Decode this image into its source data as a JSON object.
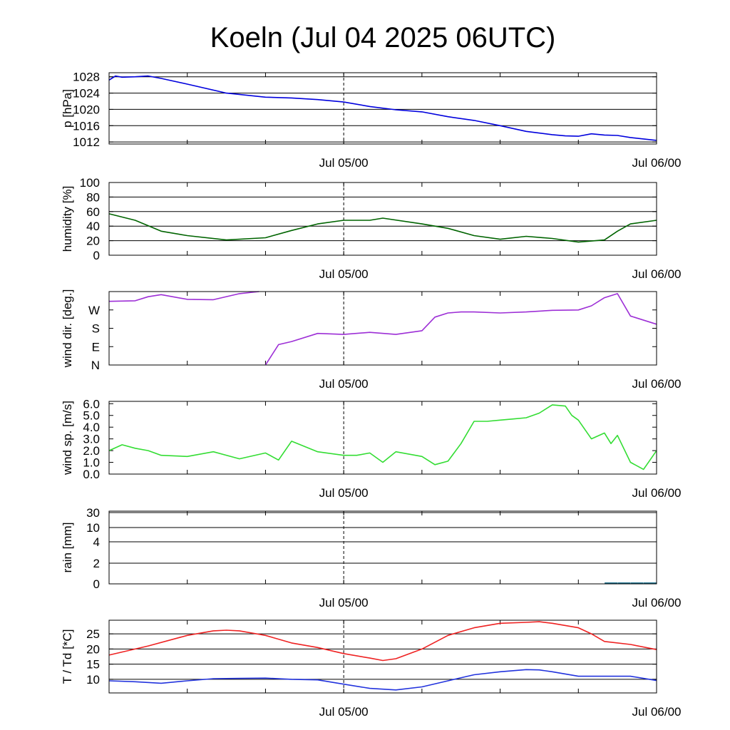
{
  "title": "Koeln (Jul 04 2025 06UTC)",
  "x_axis": {
    "start": "2025-07-04 06:00 UTC",
    "end": "2025-07-06 00:00 UTC",
    "tick_labels": [
      {
        "label": "Jul 05/00",
        "time": "2025-07-05 00:00 UTC"
      },
      {
        "label": "Jul 06/00",
        "time": "2025-07-06 00:00 UTC"
      }
    ]
  },
  "chart_data": [
    {
      "type": "line",
      "ylabel": "p [hPa]",
      "ylim": [
        1011.5,
        1029
      ],
      "yticks": [
        1012,
        1016,
        1020,
        1024,
        1028
      ],
      "ytick_labels": [
        "1012",
        "1016",
        "1020",
        "1024",
        "1028"
      ],
      "grid": true,
      "color": "#0000dd",
      "x": [
        "07-04 06:00",
        "07-04 06:30",
        "07-04 07:00",
        "07-04 08:00",
        "07-04 09:00",
        "07-04 10:00",
        "07-04 12:00",
        "07-04 15:00",
        "07-04 18:00",
        "07-04 20:00",
        "07-04 22:00",
        "07-05 00:00",
        "07-05 02:00",
        "07-05 04:00",
        "07-05 06:00",
        "07-05 08:00",
        "07-05 10:00",
        "07-05 12:00",
        "07-05 14:00",
        "07-05 16:00",
        "07-05 17:00",
        "07-05 18:00",
        "07-05 19:00",
        "07-05 20:00",
        "07-05 21:00",
        "07-05 22:00",
        "07-06 00:00"
      ],
      "values": [
        1027.2,
        1028.2,
        1027.9,
        1028.0,
        1028.2,
        1027.6,
        1026.2,
        1024.0,
        1023.0,
        1022.8,
        1022.4,
        1021.8,
        1020.7,
        1019.9,
        1019.4,
        1018.2,
        1017.3,
        1016.0,
        1014.6,
        1013.8,
        1013.5,
        1013.4,
        1014.0,
        1013.7,
        1013.6,
        1013.1,
        1012.4
      ]
    },
    {
      "type": "line",
      "ylabel": "humidity [%]",
      "ylim": [
        0,
        100
      ],
      "yticks": [
        0,
        20,
        40,
        60,
        80,
        100
      ],
      "ytick_labels": [
        "0",
        "20",
        "40",
        "60",
        "80",
        "100"
      ],
      "grid": true,
      "color": "#006400",
      "x": [
        "07-04 06:00",
        "07-04 08:00",
        "07-04 10:00",
        "07-04 12:00",
        "07-04 15:00",
        "07-04 18:00",
        "07-04 20:00",
        "07-04 22:00",
        "07-05 00:00",
        "07-05 02:00",
        "07-05 03:00",
        "07-05 06:00",
        "07-05 08:00",
        "07-05 10:00",
        "07-05 12:00",
        "07-05 14:00",
        "07-05 16:00",
        "07-05 18:00",
        "07-05 20:00",
        "07-05 21:00",
        "07-05 22:00",
        "07-06 00:00"
      ],
      "values": [
        57,
        48,
        33,
        27,
        21,
        24,
        34,
        43,
        48,
        48,
        51,
        43,
        37,
        27,
        22,
        26,
        23,
        18,
        21,
        33,
        43,
        48
      ]
    },
    {
      "type": "line",
      "ylabel": "wind dir. [deg.]",
      "ylim": [
        0,
        360
      ],
      "yticks": [
        0,
        90,
        180,
        270
      ],
      "ytick_labels": [
        "N",
        "E",
        "S",
        "W"
      ],
      "grid": false,
      "color": "#9d2fd6",
      "x": [
        "07-04 06:00",
        "07-04 08:00",
        "07-04 09:00",
        "07-04 10:00",
        "07-04 12:00",
        "07-04 14:00",
        "07-04 16:00",
        "07-04 17:30",
        "07-04 18:00",
        "07-04 19:00",
        "07-04 20:00",
        "07-04 22:00",
        "07-05 00:00",
        "07-05 02:00",
        "07-05 04:00",
        "07-05 06:00",
        "07-05 07:00",
        "07-05 08:00",
        "07-05 09:00",
        "07-05 10:00",
        "07-05 12:00",
        "07-05 14:00",
        "07-05 16:00",
        "07-05 18:00",
        "07-05 19:00",
        "07-05 20:00",
        "07-05 21:00",
        "07-05 22:00",
        "07-06 00:00"
      ],
      "values": [
        312,
        315,
        335,
        345,
        322,
        320,
        350,
        360,
        0,
        100,
        115,
        155,
        150,
        160,
        150,
        168,
        235,
        255,
        260,
        260,
        255,
        260,
        268,
        270,
        290,
        330,
        350,
        240,
        200
      ]
    },
    {
      "type": "line",
      "ylabel": "wind sp. [m/s]",
      "ylim": [
        0,
        6.2
      ],
      "yticks": [
        0,
        1,
        2,
        3,
        4,
        5,
        6
      ],
      "ytick_labels": [
        "0.0",
        "1.0",
        "2.0",
        "3.0",
        "4.0",
        "5.0",
        "6.0"
      ],
      "grid": false,
      "color": "#33dd33",
      "x": [
        "07-04 06:00",
        "07-04 07:00",
        "07-04 08:00",
        "07-04 09:00",
        "07-04 10:00",
        "07-04 12:00",
        "07-04 14:00",
        "07-04 16:00",
        "07-04 18:00",
        "07-04 19:00",
        "07-04 20:00",
        "07-04 22:00",
        "07-05 00:00",
        "07-05 01:00",
        "07-05 02:00",
        "07-05 03:00",
        "07-05 04:00",
        "07-05 06:00",
        "07-05 07:00",
        "07-05 08:00",
        "07-05 09:00",
        "07-05 10:00",
        "07-05 11:00",
        "07-05 12:00",
        "07-05 13:00",
        "07-05 14:00",
        "07-05 15:00",
        "07-05 16:00",
        "07-05 17:00",
        "07-05 17:30",
        "07-05 18:00",
        "07-05 19:00",
        "07-05 20:00",
        "07-05 20:30",
        "07-05 21:00",
        "07-05 22:00",
        "07-05 23:00",
        "07-06 00:00"
      ],
      "values": [
        2.0,
        2.5,
        2.2,
        2.0,
        1.6,
        1.5,
        1.9,
        1.3,
        1.8,
        1.2,
        2.8,
        1.9,
        1.6,
        1.6,
        1.8,
        1.0,
        1.9,
        1.5,
        0.8,
        1.1,
        2.6,
        4.5,
        4.5,
        4.6,
        4.7,
        4.8,
        5.2,
        5.9,
        5.8,
        5.0,
        4.6,
        3.0,
        3.5,
        2.6,
        3.3,
        1.0,
        0.4,
        2.0
      ]
    },
    {
      "type": "bar",
      "ylabel": "rain [mm]",
      "yscale": "nonlinear",
      "yticks": [
        0,
        2,
        4,
        10,
        30
      ],
      "ytick_labels": [
        "0",
        "2",
        "4",
        "10",
        "30"
      ],
      "grid": true,
      "color": "#1f6f8b",
      "x": [
        "07-05 21:00",
        "07-05 22:00",
        "07-05 23:00",
        "07-06 00:00"
      ],
      "values": [
        0.02,
        0.02,
        0.02,
        0.02
      ]
    },
    {
      "type": "line",
      "ylabel": "T / Td [*C]",
      "ylim": [
        5.5,
        29.5
      ],
      "yticks": [
        10,
        15,
        20,
        25
      ],
      "ytick_labels": [
        "10",
        "15",
        "20",
        "25"
      ],
      "grid": true,
      "series": [
        {
          "name": "T",
          "color": "#ee2222",
          "x": [
            "07-04 06:00",
            "07-04 09:00",
            "07-04 12:00",
            "07-04 14:00",
            "07-04 15:00",
            "07-04 16:00",
            "07-04 18:00",
            "07-04 20:00",
            "07-04 22:00",
            "07-05 00:00",
            "07-05 02:00",
            "07-05 03:00",
            "07-05 04:00",
            "07-05 06:00",
            "07-05 08:00",
            "07-05 10:00",
            "07-05 12:00",
            "07-05 14:00",
            "07-05 15:00",
            "07-05 16:00",
            "07-05 18:00",
            "07-05 19:00",
            "07-05 20:00",
            "07-05 22:00",
            "07-06 00:00"
          ],
          "values": [
            18.0,
            21.0,
            24.5,
            26.0,
            26.2,
            26.0,
            24.5,
            22.0,
            20.5,
            18.5,
            17.0,
            16.2,
            16.8,
            20.0,
            24.5,
            27.0,
            28.5,
            28.8,
            29.0,
            28.5,
            27.0,
            25.0,
            22.5,
            21.5,
            19.8
          ]
        },
        {
          "name": "Td",
          "color": "#2233dd",
          "x": [
            "07-04 06:00",
            "07-04 08:00",
            "07-04 10:00",
            "07-04 12:00",
            "07-04 14:00",
            "07-04 16:00",
            "07-04 18:00",
            "07-04 20:00",
            "07-04 22:00",
            "07-05 00:00",
            "07-05 02:00",
            "07-05 04:00",
            "07-05 06:00",
            "07-05 08:00",
            "07-05 10:00",
            "07-05 12:00",
            "07-05 14:00",
            "07-05 15:00",
            "07-05 16:00",
            "07-05 18:00",
            "07-05 20:00",
            "07-05 22:00",
            "07-06 00:00"
          ],
          "values": [
            9.5,
            9.2,
            8.7,
            9.5,
            10.2,
            10.3,
            10.4,
            10.0,
            9.8,
            8.4,
            7.0,
            6.5,
            7.5,
            9.5,
            11.5,
            12.5,
            13.2,
            13.1,
            12.5,
            11.0,
            11.0,
            11.0,
            9.6
          ]
        }
      ]
    }
  ]
}
